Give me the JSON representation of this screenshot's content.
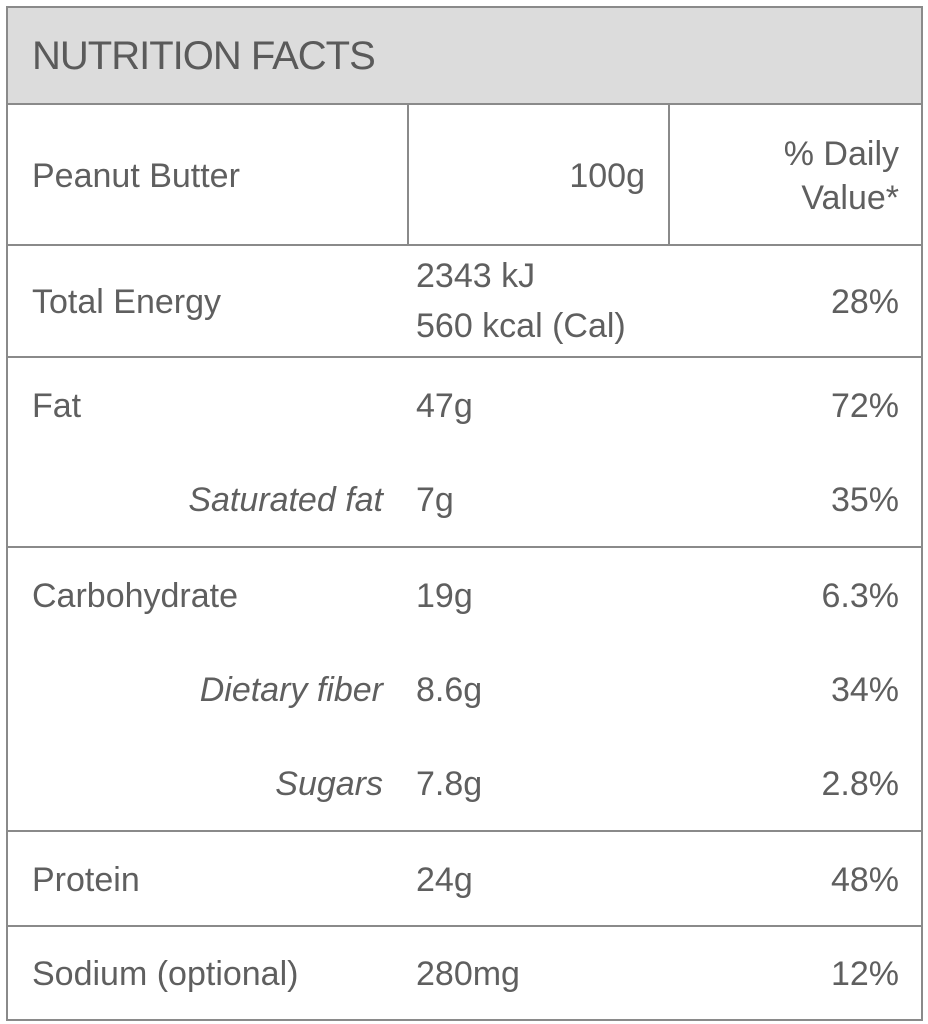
{
  "header": {
    "title": "NUTRITION FACTS"
  },
  "columns": {
    "product": "Peanut Butter",
    "serving": "100g",
    "dv_line1": "% Daily",
    "dv_line2": "Value*"
  },
  "energy": {
    "label": "Total  Energy",
    "kj": "2343 kJ",
    "kcal": "560 kcal (Cal)",
    "dv": "28%"
  },
  "rows": [
    {
      "label": "Fat",
      "amount": "47g",
      "dv": "72%"
    },
    {
      "label": "Saturated fat",
      "amount": "7g",
      "dv": "35%"
    },
    {
      "label": "Carbohydrate",
      "amount": "19g",
      "dv": "6.3%"
    },
    {
      "label": "Dietary fiber",
      "amount": "8.6g",
      "dv": "34%"
    },
    {
      "label": "Sugars",
      "amount": "7.8g",
      "dv": "2.8%"
    },
    {
      "label": "Protein",
      "amount": "24g",
      "dv": "48%"
    },
    {
      "label": "Sodium (optional)",
      "amount": "280mg",
      "dv": "12%"
    }
  ]
}
